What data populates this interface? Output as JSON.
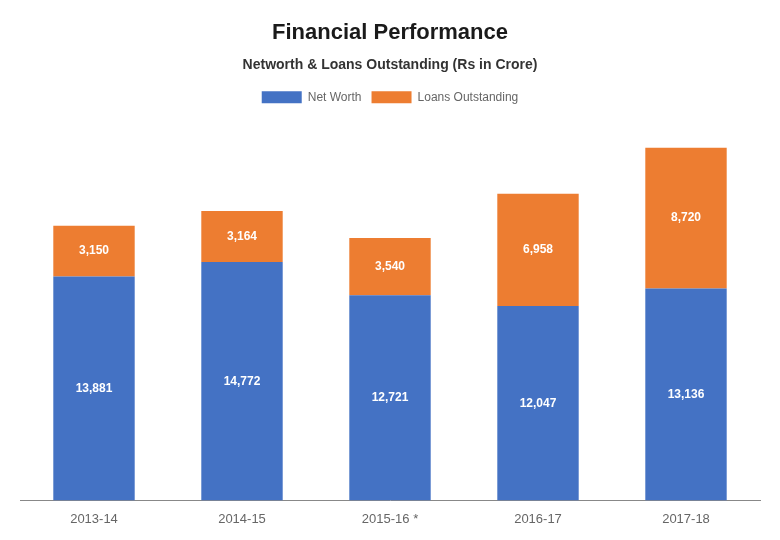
{
  "chart_data": {
    "type": "bar",
    "title": "Financial Performance",
    "subtitle": "Networth & Loans Outstanding (Rs in Crore)",
    "categories": [
      "2013-14",
      "2014-15",
      "2015-16 *",
      "2016-17",
      "2017-18"
    ],
    "series": [
      {
        "name": "Net Worth",
        "color": "#4472C4",
        "values": [
          13881,
          14772,
          12721,
          12047,
          13136
        ],
        "value_labels": [
          "13,881",
          "14,772",
          "12,721",
          "12,047",
          "13,136"
        ]
      },
      {
        "name": "Loans Outstanding",
        "color": "#ED7D31",
        "values": [
          3150,
          3164,
          3540,
          6958,
          8720
        ],
        "value_labels": [
          "3,150",
          "3,164",
          "3,540",
          "6,958",
          "8,720"
        ]
      }
    ],
    "stacked": true,
    "ylim": [
      0,
      24000
    ],
    "grid": false,
    "legend": "top",
    "data_labels": true,
    "tick_labels": "x"
  }
}
